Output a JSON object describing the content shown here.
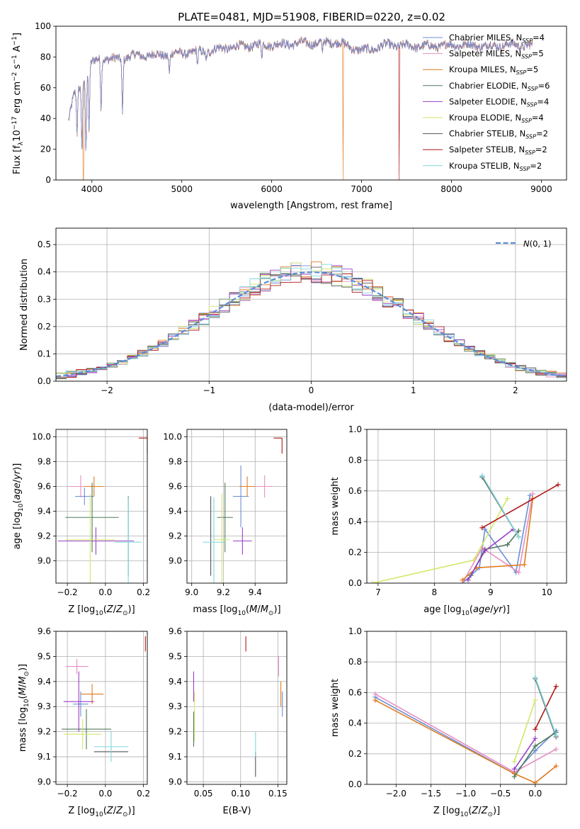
{
  "title": "PLATE=0481, MJD=51908, FIBERID=0220, z=0.02",
  "models": [
    {
      "label": "Chabrier MILES, N",
      "nssp": "4",
      "color": "#6b8fd6"
    },
    {
      "label": "Salpeter MILES, N",
      "nssp": "5",
      "color": "#e68fc3"
    },
    {
      "label": "Kroupa MILES, N",
      "nssp": "5",
      "color": "#e07b20"
    },
    {
      "label": "Chabrier ELODIE, N",
      "nssp": "6",
      "color": "#4f7a5a"
    },
    {
      "label": "Salpeter ELODIE, N",
      "nssp": "4",
      "color": "#9b3ec8"
    },
    {
      "label": "Kroupa ELODIE, N",
      "nssp": "4",
      "color": "#d4e66a"
    },
    {
      "label": "Chabrier STELIB, N",
      "nssp": "2",
      "color": "#555555"
    },
    {
      "label": "Salpeter STELIB, N",
      "nssp": "2",
      "color": "#b01818"
    },
    {
      "label": "Kroupa STELIB, N",
      "nssp": "2",
      "color": "#7fd8dc"
    }
  ],
  "nssp_sub": "SSP",
  "chart_data": [
    {
      "type": "line",
      "id": "spectrum",
      "xlabel": "wavelength [Angstrom, rest frame]",
      "ylabel": "Flux [f",
      "xlim": [
        3600,
        9280
      ],
      "ylim": [
        0,
        100
      ],
      "xticks": [
        4000,
        5000,
        6000,
        7000,
        8000,
        9000
      ],
      "yticks": [
        0,
        20,
        40,
        60,
        80,
        100
      ],
      "grid": false,
      "legend": "top-right",
      "continuum": [
        [
          3740,
          38
        ],
        [
          3800,
          55
        ],
        [
          3880,
          62
        ],
        [
          3950,
          70
        ],
        [
          4000,
          76
        ],
        [
          4100,
          80
        ],
        [
          4200,
          78
        ],
        [
          4300,
          79
        ],
        [
          4400,
          80
        ],
        [
          4500,
          81
        ],
        [
          4700,
          81
        ],
        [
          4900,
          82
        ],
        [
          5100,
          83
        ],
        [
          5300,
          84
        ],
        [
          5500,
          86
        ],
        [
          5700,
          87
        ],
        [
          5900,
          88
        ],
        [
          6100,
          88
        ],
        [
          6300,
          89
        ],
        [
          6500,
          89
        ],
        [
          6700,
          90
        ],
        [
          6800,
          88
        ],
        [
          6900,
          86
        ],
        [
          7000,
          84
        ],
        [
          7100,
          85
        ],
        [
          7300,
          88
        ],
        [
          7500,
          87
        ],
        [
          7800,
          87
        ],
        [
          8100,
          88
        ],
        [
          8400,
          87
        ],
        [
          8700,
          88
        ],
        [
          8900,
          87
        ]
      ],
      "absorption": [
        [
          3835,
          30
        ],
        [
          3889,
          22
        ],
        [
          3934,
          20
        ],
        [
          3968,
          30
        ],
        [
          4102,
          46
        ],
        [
          4340,
          44
        ],
        [
          4861,
          70
        ],
        [
          5175,
          74
        ],
        [
          5270,
          78
        ],
        [
          5890,
          80
        ],
        [
          6563,
          82
        ]
      ],
      "dropouts": [
        [
          3905,
          "Kroupa MILES"
        ],
        [
          6795,
          "Kroupa MILES"
        ],
        [
          7420,
          "Salpeter STELIB"
        ]
      ]
    },
    {
      "type": "histogram",
      "id": "residuals",
      "xlabel": "(data-model)/error",
      "ylabel": "Normed distribution",
      "xlim": [
        -2.5,
        2.5
      ],
      "ylim": [
        0,
        0.56
      ],
      "xticks": [
        -2,
        -1,
        0,
        1,
        2
      ],
      "yticks": [
        0,
        0.1,
        0.2,
        0.3,
        0.4,
        0.5
      ],
      "grid": true,
      "legend": "top-right",
      "reference_label": "N(0,1)",
      "bin_width": 0.1
    },
    {
      "type": "scatter",
      "id": "age-vs-Z",
      "xlabel": "Z [log10(Z/Zsun)]",
      "ylabel": "age  [log10(age/yr)]",
      "xlim": [
        -0.26,
        0.22
      ],
      "ylim": [
        8.82,
        10.06
      ],
      "xticks": [
        -0.2,
        0.0,
        0.2
      ],
      "yticks": [
        9.0,
        9.2,
        9.4,
        9.6,
        9.8,
        10.0
      ],
      "grid": true,
      "points": [
        {
          "model": "Chabrier MILES",
          "x": -0.11,
          "y": 9.52,
          "xerr": 0.05,
          "yerr": 0.07
        },
        {
          "model": "Salpeter MILES",
          "x": -0.13,
          "y": 9.6,
          "xerr": 0.06,
          "yerr": 0.09
        },
        {
          "model": "Kroupa MILES",
          "x": -0.06,
          "y": 9.6,
          "xerr": 0.05,
          "yerr": 0.08
        },
        {
          "model": "Chabrier ELODIE",
          "x": -0.07,
          "y": 9.35,
          "xerr": 0.14,
          "yerr": 0.28
        },
        {
          "model": "Salpeter ELODIE",
          "x": -0.05,
          "y": 9.16,
          "xerr": 0.2,
          "yerr": 0.11
        },
        {
          "model": "Kroupa ELODIE",
          "x": -0.08,
          "y": 9.17,
          "xerr": 0.13,
          "yerr": 0.37
        },
        {
          "model": "Chabrier STELIB",
          "x": 0.12,
          "y": 9.2,
          "xerr": 0.0,
          "yerr": 0.32
        },
        {
          "model": "Salpeter STELIB",
          "x": 0.22,
          "y": 9.99,
          "xerr": 0.0,
          "yerr": 0.0
        },
        {
          "model": "Kroupa STELIB",
          "x": 0.12,
          "y": 9.15,
          "xerr": 0.07,
          "yerr": 0.36
        }
      ]
    },
    {
      "type": "scatter",
      "id": "age-vs-mass",
      "xlabel": "mass [log10(M/Msun)]",
      "ylabel": "",
      "xlim": [
        8.97,
        9.6
      ],
      "ylim": [
        8.82,
        10.06
      ],
      "xticks": [
        9.0,
        9.2,
        9.4
      ],
      "yticks": [
        9.0,
        9.2,
        9.4,
        9.6,
        9.8,
        10.0
      ],
      "grid": true,
      "points": [
        {
          "model": "Chabrier MILES",
          "x": 9.31,
          "y": 9.52,
          "xerr": 0.05,
          "yerr": 0.25
        },
        {
          "model": "Salpeter MILES",
          "x": 9.46,
          "y": 9.6,
          "xerr": 0.05,
          "yerr": 0.09
        },
        {
          "model": "Kroupa MILES",
          "x": 9.35,
          "y": 9.6,
          "xerr": 0.05,
          "yerr": 0.08
        },
        {
          "model": "Chabrier ELODIE",
          "x": 9.21,
          "y": 9.35,
          "xerr": 0.05,
          "yerr": 0.28
        },
        {
          "model": "Salpeter ELODIE",
          "x": 9.32,
          "y": 9.16,
          "xerr": 0.06,
          "yerr": 0.11
        },
        {
          "model": "Kroupa ELODIE",
          "x": 9.19,
          "y": 9.17,
          "xerr": 0.05,
          "yerr": 0.37
        },
        {
          "model": "Chabrier STELIB",
          "x": 9.12,
          "y": 9.2,
          "xerr": 0.0,
          "yerr": 0.32
        },
        {
          "model": "Salpeter STELIB",
          "x": 9.57,
          "y": 9.99,
          "xerr": 0.0,
          "yerr": 0.0
        },
        {
          "model": "Kroupa STELIB",
          "x": 9.14,
          "y": 9.15,
          "xerr": 0.07,
          "yerr": 0.36
        }
      ]
    },
    {
      "type": "line",
      "id": "weight-vs-age",
      "xlabel": "age  [log10(age/yr)]",
      "ylabel": "mass weight",
      "xlim": [
        6.8,
        10.35
      ],
      "ylim": [
        0,
        1.0
      ],
      "xticks": [
        7,
        8,
        9,
        10
      ],
      "yticks": [
        0,
        0.2,
        0.4,
        0.6,
        0.8,
        1.0
      ],
      "grid": true,
      "series": [
        {
          "model": "Chabrier MILES",
          "points": [
            [
              8.5,
              0.0
            ],
            [
              8.8,
              0.1
            ],
            [
              8.9,
              0.35
            ],
            [
              9.45,
              0.07
            ],
            [
              9.7,
              0.57
            ]
          ]
        },
        {
          "model": "Salpeter MILES",
          "points": [
            [
              8.5,
              0.0
            ],
            [
              8.85,
              0.23
            ],
            [
              9.5,
              0.07
            ],
            [
              9.75,
              0.58
            ]
          ]
        },
        {
          "model": "Kroupa MILES",
          "points": [
            [
              8.5,
              0.02
            ],
            [
              8.75,
              0.1
            ],
            [
              9.6,
              0.12
            ],
            [
              9.75,
              0.55
            ]
          ]
        },
        {
          "model": "Chabrier ELODIE",
          "points": [
            [
              8.65,
              0.05
            ],
            [
              8.9,
              0.22
            ],
            [
              9.3,
              0.25
            ],
            [
              9.5,
              0.34
            ]
          ]
        },
        {
          "model": "Salpeter ELODIE",
          "points": [
            [
              8.6,
              0.02
            ],
            [
              8.9,
              0.21
            ],
            [
              9.4,
              0.35
            ]
          ]
        },
        {
          "model": "Kroupa ELODIE",
          "points": [
            [
              6.9,
              0.0
            ],
            [
              8.7,
              0.15
            ],
            [
              9.3,
              0.55
            ]
          ]
        },
        {
          "model": "Chabrier STELIB",
          "points": [
            [
              8.85,
              0.69
            ],
            [
              9.5,
              0.3
            ]
          ]
        },
        {
          "model": "Salpeter STELIB",
          "points": [
            [
              8.85,
              0.36
            ],
            [
              10.2,
              0.64
            ]
          ]
        },
        {
          "model": "Kroupa STELIB",
          "points": [
            [
              8.85,
              0.7
            ],
            [
              9.5,
              0.3
            ]
          ]
        }
      ]
    },
    {
      "type": "scatter",
      "id": "mass-vs-Z",
      "xlabel": "Z [log10(Z/Zsun)]",
      "ylabel": "mass [log10(M/Msun)]",
      "xlim": [
        -0.26,
        0.22
      ],
      "ylim": [
        8.99,
        9.6
      ],
      "xticks": [
        -0.2,
        0.0,
        0.2
      ],
      "yticks": [
        9.0,
        9.1,
        9.2,
        9.3,
        9.4,
        9.5,
        9.6
      ],
      "grid": true,
      "points": [
        {
          "model": "Chabrier MILES",
          "x": -0.13,
          "y": 9.31,
          "xerr": 0.04,
          "yerr": 0.05
        },
        {
          "model": "Salpeter MILES",
          "x": -0.15,
          "y": 9.46,
          "xerr": 0.06,
          "yerr": 0.03
        },
        {
          "model": "Kroupa MILES",
          "x": -0.07,
          "y": 9.35,
          "xerr": 0.06,
          "yerr": 0.04
        },
        {
          "model": "Chabrier ELODIE",
          "x": -0.1,
          "y": 9.21,
          "xerr": 0.13,
          "yerr": 0.08
        },
        {
          "model": "Salpeter ELODIE",
          "x": -0.14,
          "y": 9.32,
          "xerr": 0.08,
          "yerr": 0.12
        },
        {
          "model": "Kroupa ELODIE",
          "x": -0.12,
          "y": 9.19,
          "xerr": 0.1,
          "yerr": 0.06
        },
        {
          "model": "Chabrier STELIB",
          "x": 0.03,
          "y": 9.12,
          "xerr": 0.09,
          "yerr": 0.0
        },
        {
          "model": "Salpeter STELIB",
          "x": 0.21,
          "y": 9.55,
          "xerr": 0.0,
          "yerr": 0.03
        },
        {
          "model": "Kroupa STELIB",
          "x": 0.03,
          "y": 9.14,
          "xerr": 0.09,
          "yerr": 0.06
        }
      ]
    },
    {
      "type": "scatter",
      "id": "mass-vs-EBV",
      "xlabel": "E(B-V)",
      "ylabel": "",
      "xlim": [
        0.028,
        0.162
      ],
      "ylim": [
        8.99,
        9.6
      ],
      "xticks": [
        0.05,
        0.1,
        0.15
      ],
      "yticks": [
        9.0,
        9.1,
        9.2,
        9.3,
        9.4,
        9.5,
        9.6
      ],
      "grid": true,
      "points": [
        {
          "model": "Chabrier MILES",
          "x": 0.156,
          "y": 9.31,
          "xerr": 0.0,
          "yerr": 0.05
        },
        {
          "model": "Salpeter MILES",
          "x": 0.151,
          "y": 9.46,
          "xerr": 0.0,
          "yerr": 0.04
        },
        {
          "model": "Kroupa MILES",
          "x": 0.154,
          "y": 9.35,
          "xerr": 0.0,
          "yerr": 0.05
        },
        {
          "model": "Chabrier ELODIE",
          "x": 0.037,
          "y": 9.21,
          "xerr": 0.0,
          "yerr": 0.07
        },
        {
          "model": "Salpeter ELODIE",
          "x": 0.037,
          "y": 9.38,
          "xerr": 0.0,
          "yerr": 0.06
        },
        {
          "model": "Kroupa ELODIE",
          "x": 0.038,
          "y": 9.26,
          "xerr": 0.0,
          "yerr": 0.1
        },
        {
          "model": "Chabrier STELIB",
          "x": 0.12,
          "y": 9.07,
          "xerr": 0.0,
          "yerr": 0.05
        },
        {
          "model": "Salpeter STELIB",
          "x": 0.107,
          "y": 9.55,
          "xerr": 0.0,
          "yerr": 0.03
        },
        {
          "model": "Kroupa STELIB",
          "x": 0.12,
          "y": 9.15,
          "xerr": 0.0,
          "yerr": 0.05
        }
      ]
    },
    {
      "type": "line",
      "id": "weight-vs-Z",
      "xlabel": "Z [log10(Z/Zsun)]",
      "ylabel": "mass weight",
      "xlim": [
        -2.42,
        0.45
      ],
      "ylim": [
        0,
        1.0
      ],
      "xticks": [
        -2.0,
        -1.5,
        -1.0,
        -0.5,
        0.0
      ],
      "yticks": [
        0,
        0.2,
        0.4,
        0.6,
        0.8,
        1.0
      ],
      "grid": true,
      "series": [
        {
          "model": "Chabrier MILES",
          "points": [
            [
              -2.3,
              0.57
            ],
            [
              -0.3,
              0.07
            ],
            [
              0.0,
              0.22
            ],
            [
              0.3,
              0.35
            ]
          ]
        },
        {
          "model": "Salpeter MILES",
          "points": [
            [
              -2.3,
              0.59
            ],
            [
              -0.3,
              0.08
            ],
            [
              0.3,
              0.23
            ]
          ]
        },
        {
          "model": "Kroupa MILES",
          "points": [
            [
              -2.3,
              0.55
            ],
            [
              -0.3,
              0.07
            ],
            [
              0.0,
              0.01
            ],
            [
              0.3,
              0.12
            ]
          ]
        },
        {
          "model": "Chabrier ELODIE",
          "points": [
            [
              -0.3,
              0.05
            ],
            [
              0.0,
              0.25
            ],
            [
              0.3,
              0.34
            ]
          ]
        },
        {
          "model": "Salpeter ELODIE",
          "points": [
            [
              -0.3,
              0.1
            ],
            [
              0.0,
              0.3
            ]
          ]
        },
        {
          "model": "Kroupa ELODIE",
          "points": [
            [
              -0.3,
              0.15
            ],
            [
              0.0,
              0.55
            ]
          ]
        },
        {
          "model": "Chabrier STELIB",
          "points": [
            [
              0.0,
              0.69
            ],
            [
              0.3,
              0.31
            ]
          ]
        },
        {
          "model": "Salpeter STELIB",
          "points": [
            [
              0.0,
              0.36
            ],
            [
              0.3,
              0.64
            ]
          ]
        },
        {
          "model": "Kroupa STELIB",
          "points": [
            [
              0.0,
              0.7
            ],
            [
              0.3,
              0.32
            ]
          ]
        }
      ]
    }
  ]
}
